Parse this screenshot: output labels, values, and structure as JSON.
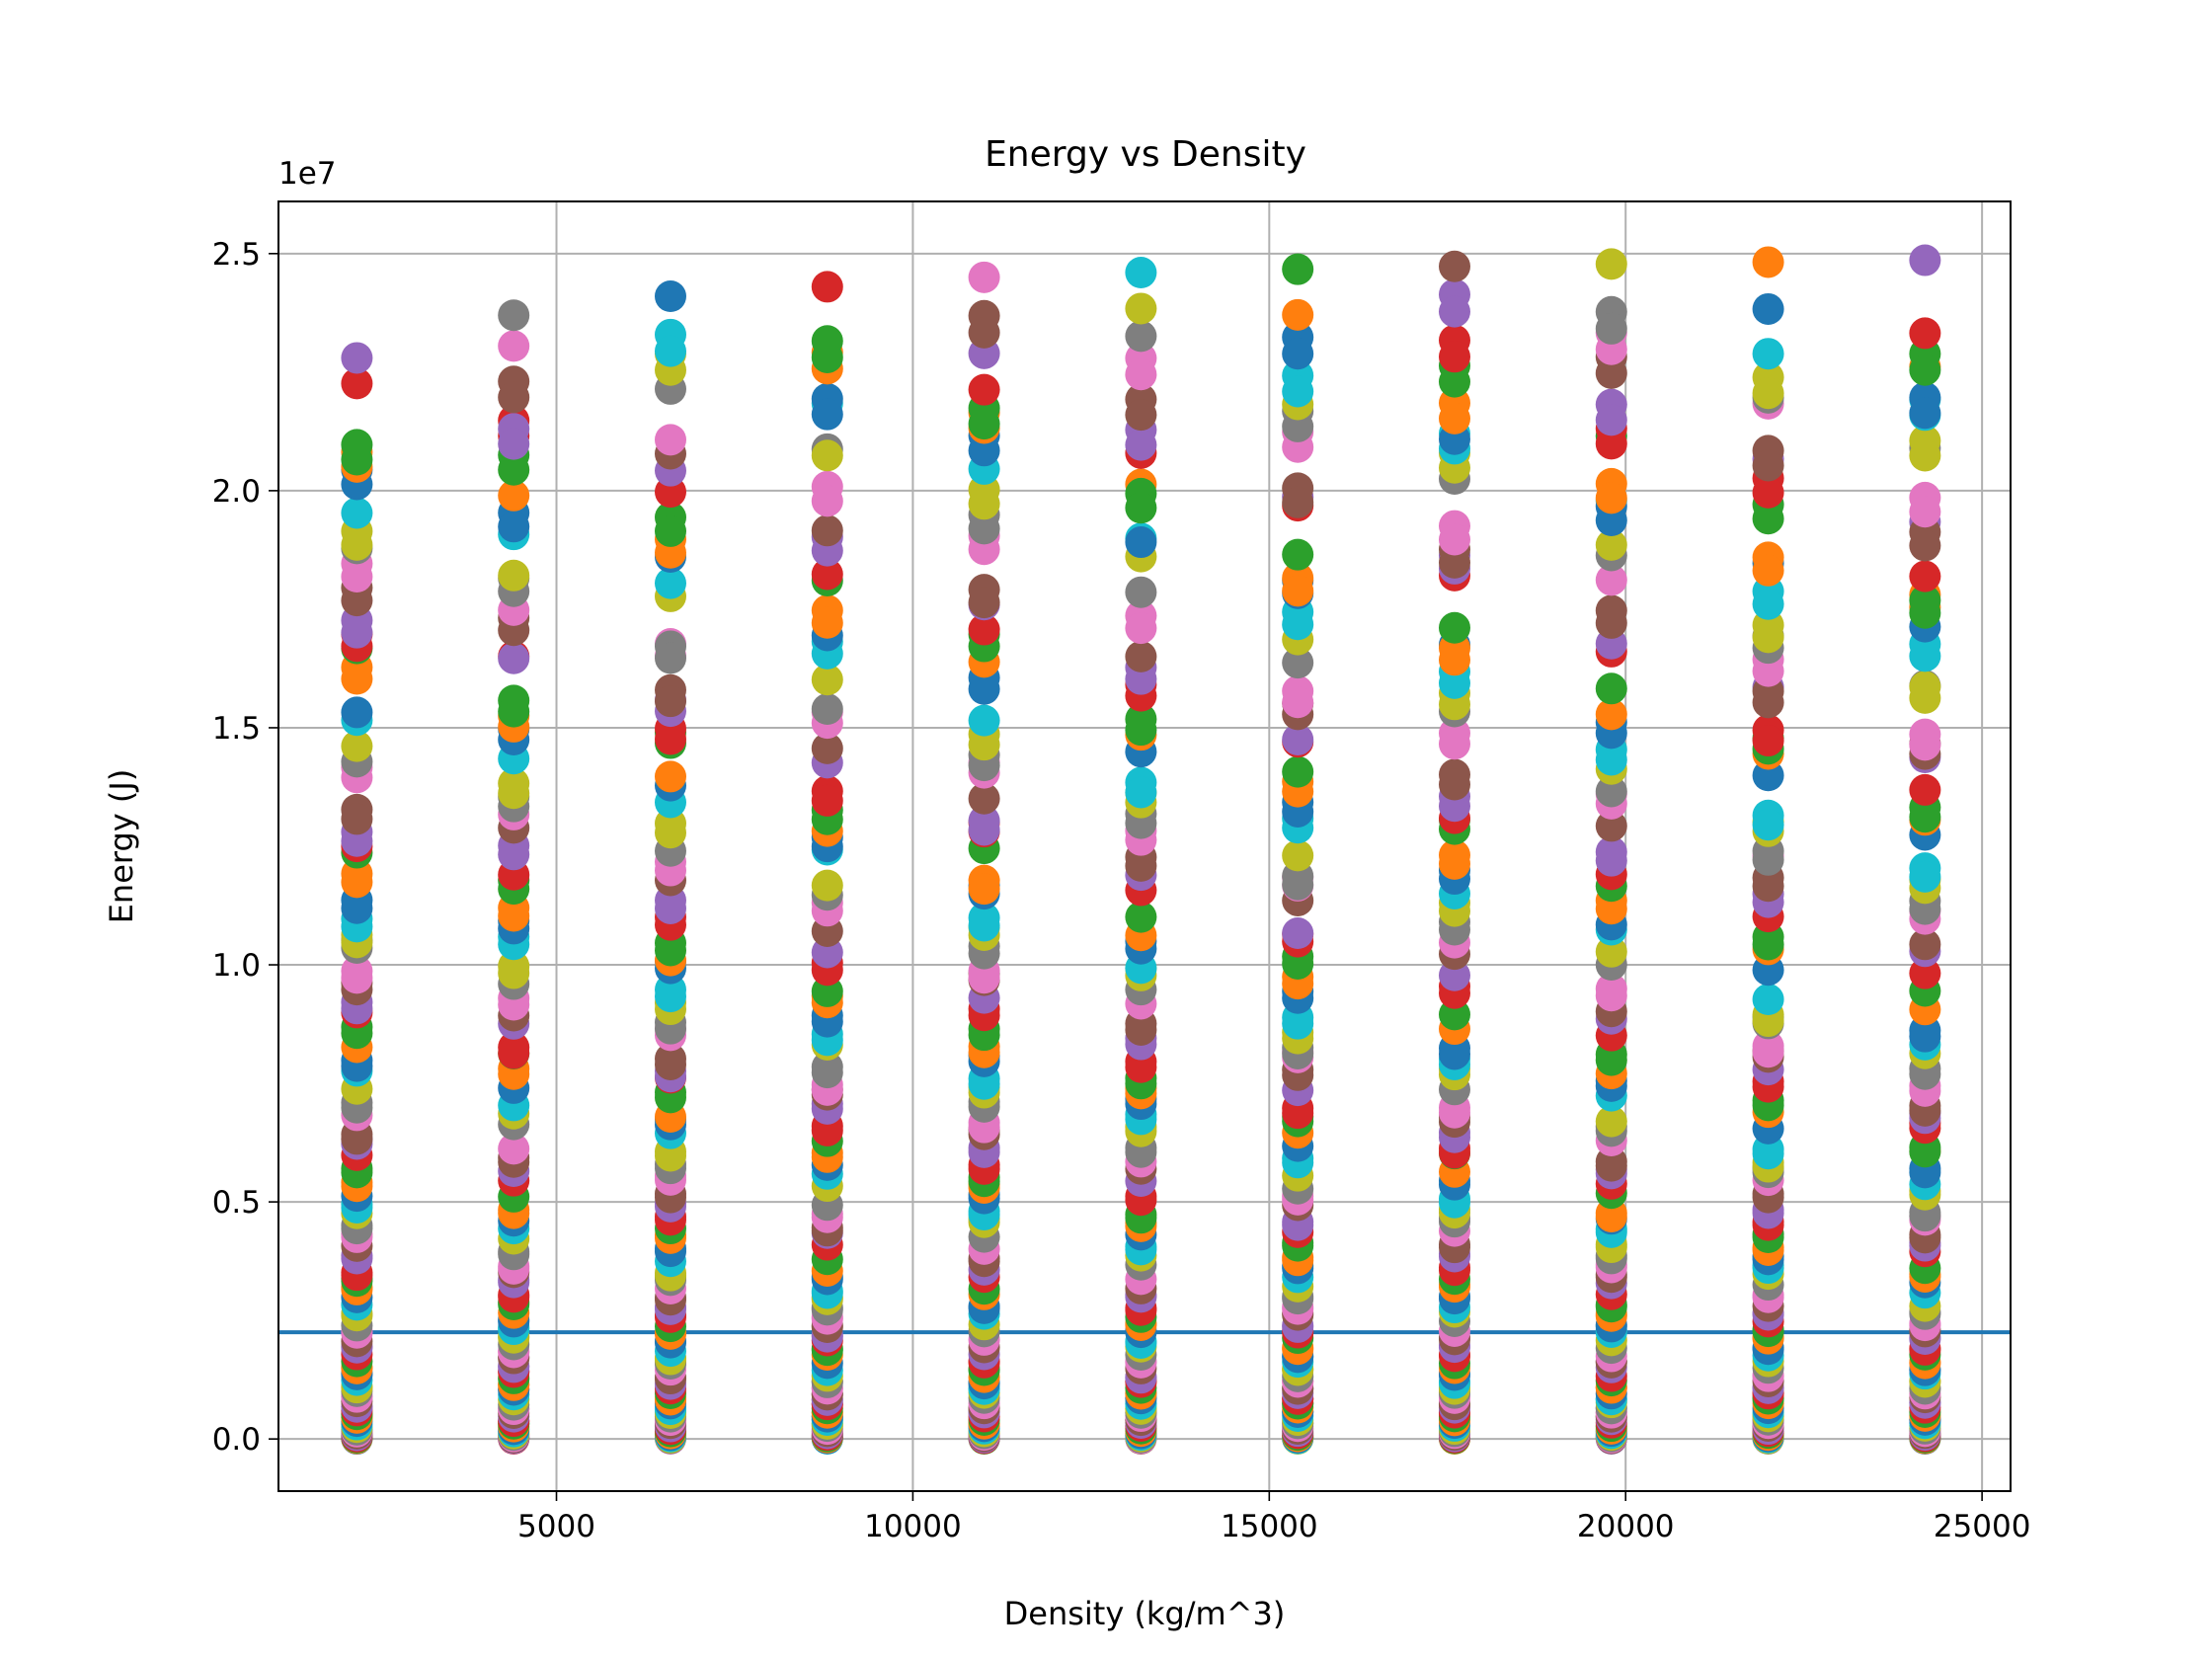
{
  "chart_data": {
    "type": "scatter",
    "title": "Energy vs Density",
    "xlabel": "Density (kg/m^3)",
    "ylabel": "Energy (J)",
    "y_offset_label": "1e7",
    "xlim": [
      1100,
      25400
    ],
    "ylim": [
      -1100000,
      26100000
    ],
    "x_ticks": [
      5000,
      10000,
      15000,
      20000,
      25000
    ],
    "x_tick_labels": [
      "5000",
      "10000",
      "15000",
      "20000",
      "25000"
    ],
    "y_ticks": [
      0,
      5000000,
      10000000,
      15000000,
      20000000,
      25000000
    ],
    "y_tick_labels": [
      "0.0",
      "0.5",
      "1.0",
      "1.5",
      "2.0",
      "2.5"
    ],
    "grid": true,
    "palette": [
      "#1f77b4",
      "#ff7f0e",
      "#2ca02c",
      "#d62728",
      "#9467bd",
      "#8c564b",
      "#e377c2",
      "#7f7f7f",
      "#bcbd22",
      "#17becf"
    ],
    "density_columns": [
      2200,
      4400,
      6600,
      8800,
      11000,
      13200,
      15400,
      17600,
      19800,
      22000,
      24200
    ],
    "points_per_column": 85,
    "max_energy_per_column": [
      22800000,
      23700000,
      24100000,
      24300000,
      24500000,
      24600000,
      24670000,
      24730000,
      24780000,
      24820000,
      24860000
    ],
    "reference_line": {
      "y": 2250000,
      "color": "#1f77b4"
    }
  }
}
